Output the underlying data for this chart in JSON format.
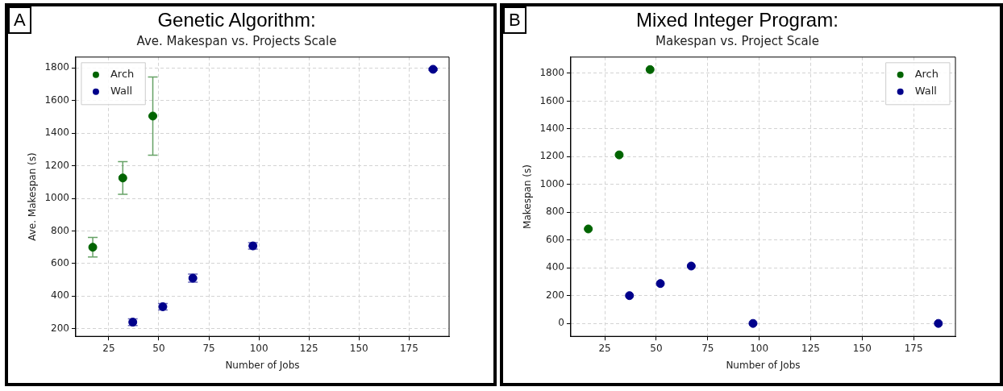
{
  "chart_data": [
    {
      "type": "scatter",
      "title": "Genetic Algorithm:",
      "subtitle": "Ave. Makespan vs. Projects Scale",
      "xlabel": "Number of Jobs",
      "ylabel": "Ave. Makespan (s)",
      "annotations": [
        "A"
      ],
      "series": [
        {
          "name": "Arch",
          "color": "#006400",
          "x": [
            17,
            32,
            47
          ],
          "values": [
            700,
            1125,
            1505
          ],
          "errors": [
            60,
            100,
            240
          ]
        },
        {
          "name": "Wall",
          "color": "#00008b",
          "x": [
            37,
            52,
            67,
            97,
            187
          ],
          "values": [
            240,
            335,
            510,
            708,
            1792
          ],
          "errors": [
            20,
            20,
            25,
            20,
            5
          ]
        }
      ],
      "xlim": [
        8.5,
        195
      ],
      "xticks": [
        25,
        50,
        75,
        100,
        125,
        150,
        175
      ],
      "ylim": [
        153,
        1867
      ],
      "yticks": [
        200,
        400,
        600,
        800,
        1000,
        1200,
        1400,
        1600,
        1800
      ],
      "grid": true,
      "legend": "top left",
      "marker": "circle"
    },
    {
      "type": "scatter",
      "title": "Mixed Integer Program:",
      "subtitle": "Makespan vs. Project Scale",
      "xlabel": "Number of Jobs",
      "ylabel": "Makespan (s)",
      "annotations": [
        "B"
      ],
      "series": [
        {
          "name": "Arch",
          "color": "#006400",
          "x": [
            17,
            32,
            47
          ],
          "values": [
            680,
            1213,
            1827
          ]
        },
        {
          "name": "Wall",
          "color": "#00008b",
          "x": [
            37,
            52,
            67,
            97,
            187
          ],
          "values": [
            200,
            287,
            413,
            0,
            0
          ]
        }
      ],
      "xlim": [
        8.5,
        195.3
      ],
      "xticks": [
        25,
        50,
        75,
        100,
        125,
        150,
        175
      ],
      "ylim": [
        -93,
        1917
      ],
      "yticks": [
        0,
        200,
        400,
        600,
        800,
        1000,
        1200,
        1400,
        1600,
        1800
      ],
      "grid": true,
      "legend": "top right",
      "marker": "circle"
    }
  ]
}
